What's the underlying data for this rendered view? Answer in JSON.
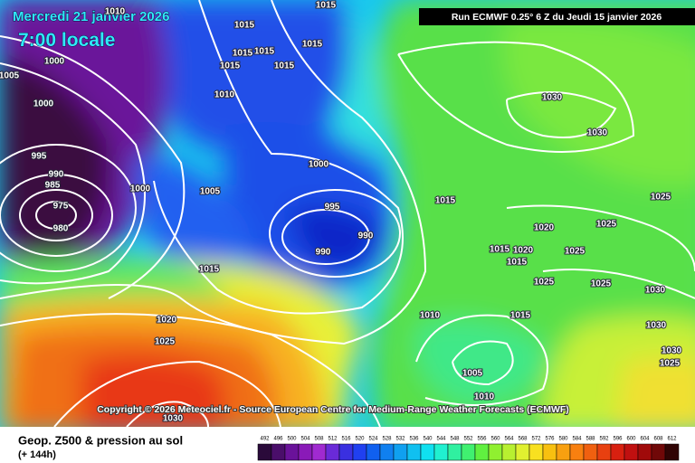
{
  "header": {
    "date": "Mercredi 21 janvier 2026",
    "time": "7:00 locale",
    "run": "Run ECMWF 0.25° 6 Z du Jeudi 15 janvier 2026"
  },
  "copyright": "Copyright © 2026 Meteociel.fr - Source European Centre for Medium-Range Weather Forecasts (ECMWF)",
  "footer": {
    "title": "Geop. Z500 & pression au sol",
    "lead": "(+ 144h)"
  },
  "isobar_labels": [
    "1010",
    "1015",
    "1015",
    "1015",
    "1015",
    "1015",
    "1015",
    "1015",
    "1000",
    "1005",
    "1010",
    "1000",
    "1030",
    "1030",
    "995",
    "1000",
    "990",
    "985",
    "1000",
    "1005",
    "1015",
    "1025",
    "975",
    "995",
    "980",
    "1020",
    "1025",
    "990",
    "990",
    "1015",
    "1020",
    "1025",
    "1015",
    "1015",
    "1025",
    "1025",
    "1030",
    "1010",
    "1015",
    "1020",
    "1030",
    "1025",
    "1030",
    "1025",
    "1005",
    "1010",
    "1030"
  ],
  "legend": {
    "labels": [
      "492",
      "496",
      "500",
      "504",
      "508",
      "512",
      "516",
      "520",
      "524",
      "528",
      "532",
      "536",
      "540",
      "544",
      "548",
      "552",
      "556",
      "560",
      "564",
      "568",
      "572",
      "576",
      "580",
      "584",
      "588",
      "592",
      "596",
      "600",
      "604",
      "608",
      "612"
    ],
    "colors": [
      "#2a0a3a",
      "#4a0e6a",
      "#6a129a",
      "#8a1ab8",
      "#a02ad0",
      "#6a2ad8",
      "#3a30e0",
      "#2040f0",
      "#1060f0",
      "#1080f0",
      "#10a0f0",
      "#10c0f0",
      "#10e0f0",
      "#20f0d0",
      "#30f0a0",
      "#40f070",
      "#60f040",
      "#90f030",
      "#b8f030",
      "#e0f030",
      "#f8e020",
      "#f8c010",
      "#f8a010",
      "#f88010",
      "#f06010",
      "#e84010",
      "#d82010",
      "#c01010",
      "#a00a0a",
      "#700808",
      "#300404"
    ]
  }
}
